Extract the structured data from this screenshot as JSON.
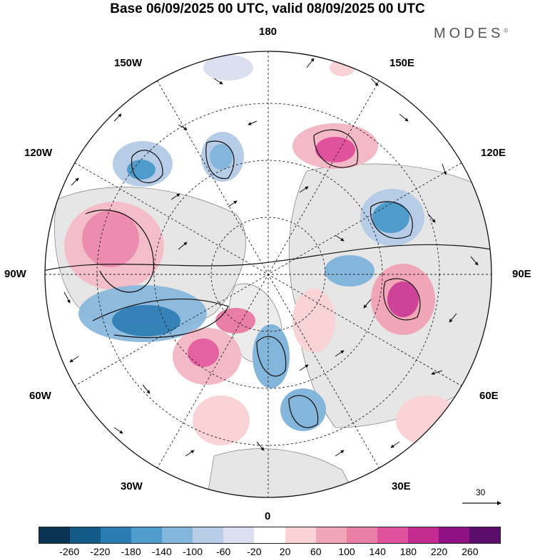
{
  "title": "Base 06/09/2025 00 UTC, valid 08/09/2025 00 UTC",
  "brand": "MODES",
  "brand_mark": "©",
  "longitude_labels": {
    "lon_180": "180",
    "lon_150w": "150W",
    "lon_150e": "150E",
    "lon_120w": "120W",
    "lon_120e": "120E",
    "lon_90w": "90W",
    "lon_90e": "90E",
    "lon_60w": "60W",
    "lon_60e": "60E",
    "lon_30w": "30W",
    "lon_30e": "30E",
    "lon_0": "0"
  },
  "vector_scale_label": "30",
  "colorbar": {
    "colors": [
      "#0b3352",
      "#145a86",
      "#2a7cb2",
      "#4f9bcb",
      "#84b6db",
      "#b7cce7",
      "#dcdff0",
      "#ffffff",
      "#f9d3d6",
      "#f1a6b7",
      "#ea7fa6",
      "#e0529b",
      "#c42b8e",
      "#8f1283",
      "#5a0d6b"
    ],
    "ticks": [
      "-260",
      "-220",
      "-180",
      "-140",
      "-100",
      "-60",
      "-20",
      "20",
      "60",
      "100",
      "140",
      "180",
      "220",
      "260"
    ]
  }
}
